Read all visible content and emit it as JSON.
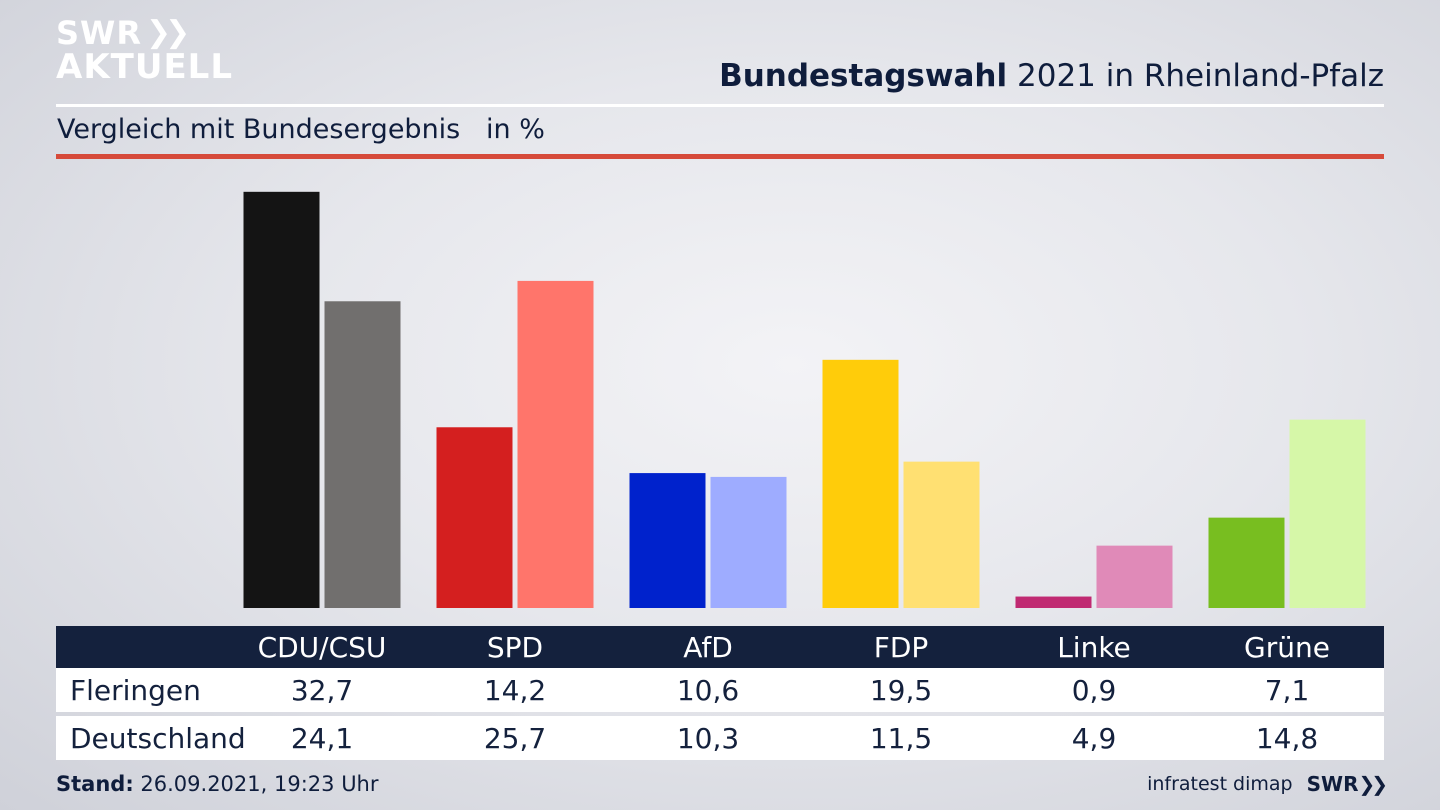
{
  "header": {
    "logo_line1": "SWR",
    "logo_line2": "AKTUELL",
    "title_bold": "Bundestagswahl",
    "title_rest": "2021 in Rheinland-Pfalz",
    "subtitle": "Vergleich mit Bundesergebnis   in %"
  },
  "colors": {
    "accent_rule": "#d64a3a",
    "table_header_bg": "#14213d"
  },
  "chart_data": {
    "type": "bar",
    "categories": [
      "CDU/CSU",
      "SPD",
      "AfD",
      "FDP",
      "Linke",
      "Grüne"
    ],
    "series": [
      {
        "name": "Fleringen",
        "values": [
          32.7,
          14.2,
          10.6,
          19.5,
          0.9,
          7.1
        ],
        "colors": [
          "#141414",
          "#d41f1f",
          "#0022cc",
          "#ffcc0a",
          "#c02a72",
          "#78be20"
        ]
      },
      {
        "name": "Deutschland",
        "values": [
          24.1,
          25.7,
          10.3,
          11.5,
          4.9,
          14.8
        ],
        "colors": [
          "#716f6e",
          "#ff756b",
          "#9eacff",
          "#ffe072",
          "#e08ab8",
          "#d6f7a8"
        ]
      }
    ],
    "value_labels": {
      "Fleringen": [
        "32,7",
        "14,2",
        "10,6",
        "19,5",
        "0,9",
        "7,1"
      ],
      "Deutschland": [
        "24,1",
        "25,7",
        "10,3",
        "11,5",
        "4,9",
        "14,8"
      ]
    },
    "ylim": [
      0,
      33
    ],
    "grid": false,
    "legend": "table-below"
  },
  "footer": {
    "stand_label": "Stand:",
    "stand_value": "26.09.2021, 19:23 Uhr",
    "source": "infratest dimap",
    "logo": "SWR"
  }
}
